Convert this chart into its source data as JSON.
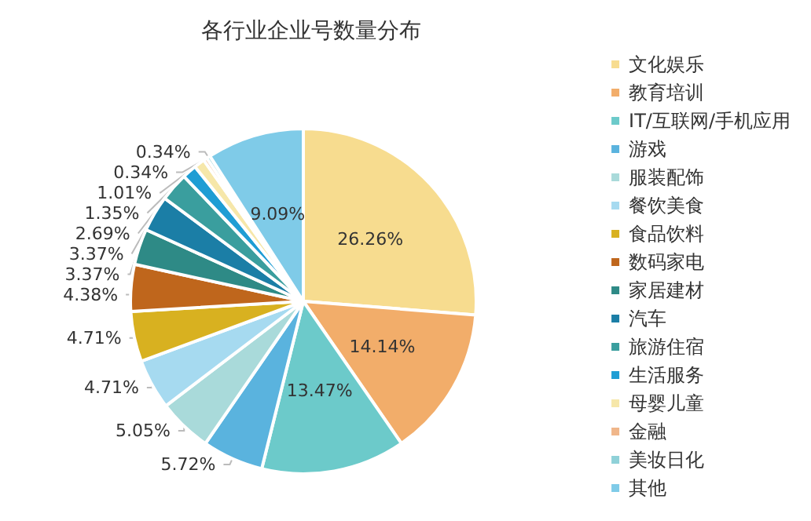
{
  "chart_data": {
    "type": "pie",
    "title": "各行业企业号数量分布",
    "categories": [
      "文化娱乐",
      "教育培训",
      "IT/互联网/手机应用",
      "游戏",
      "服装配饰",
      "餐饮美食",
      "食品饮料",
      "数码家电",
      "家居建材",
      "汽车",
      "旅游住宿",
      "生活服务",
      "母婴儿童",
      "金融",
      "美妆日化",
      "其他"
    ],
    "values": [
      26.26,
      14.14,
      13.47,
      5.72,
      5.05,
      4.71,
      4.71,
      4.38,
      3.37,
      3.37,
      2.69,
      1.35,
      1.01,
      0.34,
      0.34,
      9.09
    ],
    "colors": [
      "#f7dc8f",
      "#f2ad6a",
      "#6ccaca",
      "#5ab3de",
      "#a9dada",
      "#a6daf0",
      "#d8b120",
      "#bf661c",
      "#2e8a86",
      "#1b7ea6",
      "#3a9e9e",
      "#1e9dd4",
      "#f6e7a9",
      "#f0b68a",
      "#8fd1d8",
      "#7fcbe8"
    ],
    "value_labels": [
      "26.26%",
      "14.14%",
      "13.47%",
      "5.72%",
      "5.05%",
      "4.71%",
      "4.71%",
      "4.38%",
      "3.37%",
      "3.37%",
      "2.69%",
      "1.35%",
      "1.01%",
      "0.34%",
      "0.34%",
      "9.09%"
    ],
    "legend": "right"
  }
}
